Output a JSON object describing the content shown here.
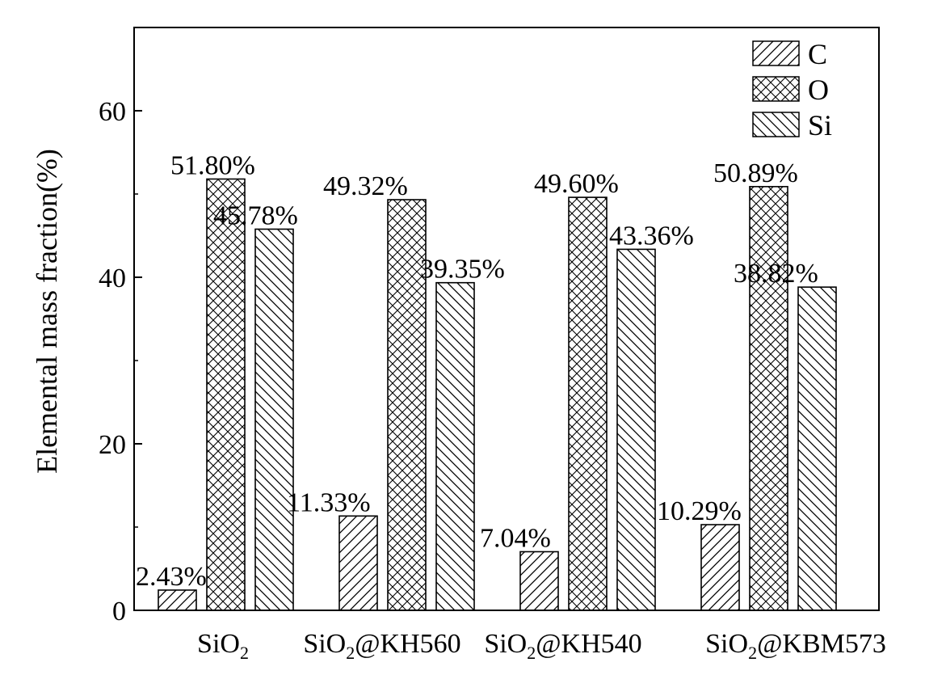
{
  "chart_data": {
    "type": "bar",
    "ylabel": "Elemental mass fraction(%)",
    "xlabel": "",
    "ylim": [
      0,
      70
    ],
    "yticks": [
      0,
      20,
      40,
      60
    ],
    "grid": false,
    "legend_position": "top-right",
    "categories": [
      {
        "base": "SiO",
        "sub": "2",
        "suffix": ""
      },
      {
        "base": "SiO",
        "sub": "2",
        "suffix": "@KH560"
      },
      {
        "base": "SiO",
        "sub": "2",
        "suffix": "@KH540"
      },
      {
        "base": "SiO",
        "sub": "2",
        "suffix": "@KBM573"
      }
    ],
    "series": [
      {
        "name": "C",
        "pattern": "forward-hatch",
        "values": [
          2.43,
          11.33,
          7.04,
          10.29
        ],
        "labels": [
          "2.43%",
          "11.33%",
          "7.04%",
          "10.29%"
        ]
      },
      {
        "name": "O",
        "pattern": "cross-hatch",
        "values": [
          51.8,
          49.32,
          49.6,
          50.89
        ],
        "labels": [
          "51.80%",
          "49.32%",
          "49.60%",
          "50.89%"
        ]
      },
      {
        "name": "Si",
        "pattern": "back-hatch",
        "values": [
          45.78,
          39.35,
          43.36,
          38.82
        ],
        "labels": [
          "45.78%",
          "39.35%",
          "43.36%",
          "38.82%"
        ]
      }
    ],
    "colors": {
      "stroke": "#000000",
      "fill": "#ffffff"
    }
  }
}
